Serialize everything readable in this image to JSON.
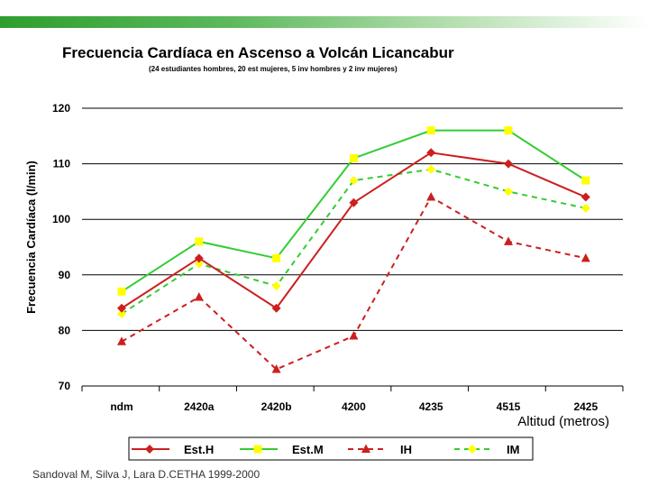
{
  "header": {
    "bar_color": "#2e9e2e"
  },
  "chart_data": {
    "type": "line",
    "title": "Frecuencia Cardíaca en Ascenso a Volcán Licancabur",
    "subtitle": "(24 estudiantes hombres, 20 est mujeres, 5 inv hombres y 2 inv mujeres)",
    "ylabel": "Frecuencia Cardíaca  (l/min)",
    "xlabel": "Altitud (metros)",
    "ylim": [
      70,
      120
    ],
    "yticks": [
      70,
      80,
      90,
      100,
      110,
      120
    ],
    "grid": true,
    "categories": [
      "ndm",
      "2420a",
      "2420b",
      "4200",
      "4235",
      "4515",
      "2425"
    ],
    "series": [
      {
        "name": "Est.H",
        "values": [
          84,
          93,
          84,
          103,
          112,
          110,
          104
        ],
        "color": "#cc1f1f",
        "dash": "solid",
        "marker": "diamond"
      },
      {
        "name": "Est.M",
        "values": [
          87,
          96,
          93,
          111,
          116,
          116,
          107
        ],
        "color": "#33cc33",
        "dash": "solid",
        "marker": "square"
      },
      {
        "name": "IH",
        "values": [
          78,
          86,
          73,
          79,
          104,
          96,
          93
        ],
        "color": "#cc1f1f",
        "dash": "dashed",
        "marker": "triangle"
      },
      {
        "name": "IM",
        "values": [
          83,
          92,
          88,
          107,
          109,
          105,
          102
        ],
        "color": "#33cc33",
        "dash": "dashed",
        "marker": "diamond"
      }
    ],
    "marker_colors": {
      "diamond-red": "#cc1f1f",
      "square": "#ffff00",
      "triangle": "#cc1f1f",
      "diamond-yellow": "#ffff00"
    },
    "legend_position": "bottom"
  },
  "footer": {
    "credit": "Sandoval M, Silva J, Lara D.CETHA 1999-2000"
  }
}
